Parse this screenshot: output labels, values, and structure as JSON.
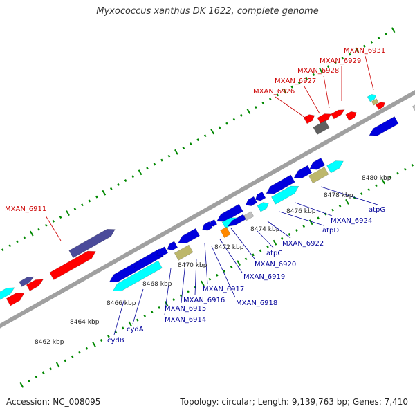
{
  "title": "Myxococcus xanthus DK 1622, complete genome",
  "footer": {
    "accession": "Accession: NC_008095",
    "summary": "Topology: circular; Length: 9,139,763 bp; Genes: 7,410"
  },
  "colors": {
    "forward_gene": "#ff0000",
    "reverse_gene": "#0000dd",
    "cyan_gene": "#00ffff",
    "navy_gene": "#4b4b9a",
    "khaki_gene": "#bdb76b",
    "gray_gene": "#c0c0c0",
    "dark_gray_gene": "#606060",
    "orange_gene": "#ff8800",
    "tick": "#008800",
    "backbone": "#a0a0a0",
    "label_red": "#cc0000",
    "label_blue": "#000099"
  },
  "scale_labels": [
    "8462 kbp",
    "8464 kbp",
    "8466 kbp",
    "8468 kbp",
    "8470 kbp",
    "8472 kbp",
    "8474 kbp",
    "8476 kbp",
    "8478 kbp",
    "8480 kbp"
  ],
  "gene_labels_top": [
    "MXAN_6911",
    "MXAN_6926",
    "MXAN_6927",
    "MXAN_6928",
    "MXAN_6929",
    "MXAN_6931"
  ],
  "gene_labels_bottom": [
    "cydB",
    "cydA",
    "MXAN_6914",
    "MXAN_6915",
    "MXAN_6916",
    "MXAN_6917",
    "MXAN_6918",
    "MXAN_6919",
    "MXAN_6920",
    "atpC",
    "MXAN_6922",
    "atpD",
    "MXAN_6924",
    "atpG"
  ]
}
